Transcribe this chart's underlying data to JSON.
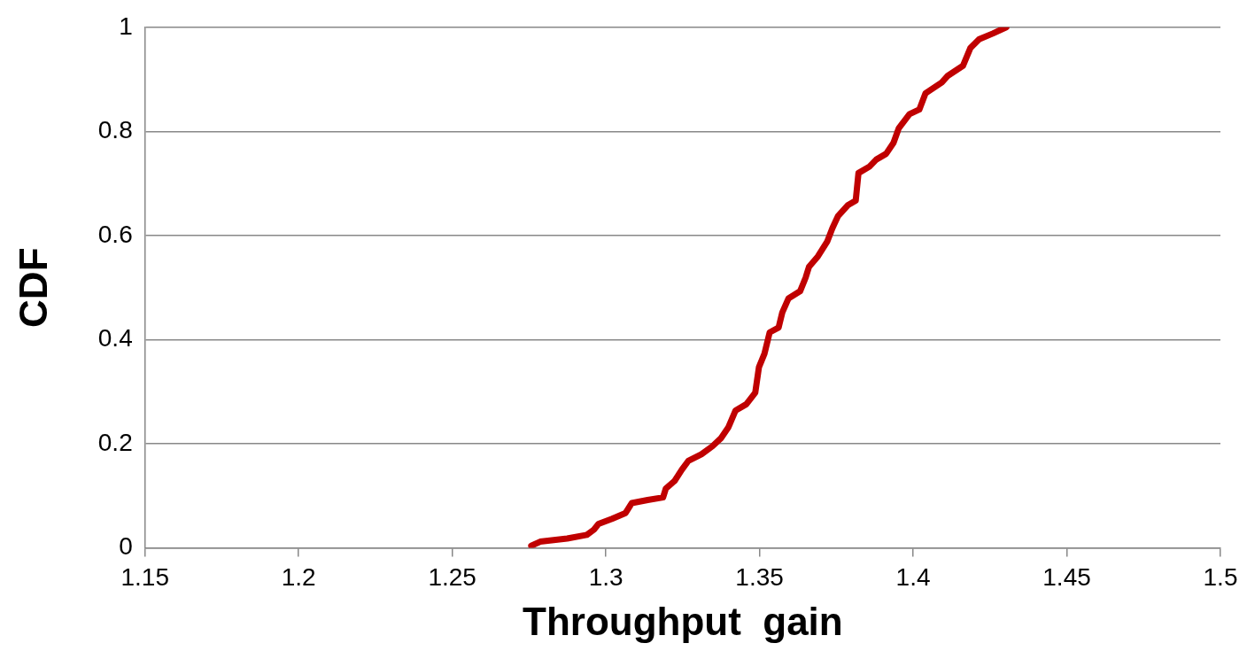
{
  "chart_data": {
    "type": "line",
    "xlabel": "Throughput  gain",
    "ylabel": "CDF",
    "xlim": [
      1.15,
      1.5
    ],
    "xticks": [
      1.15,
      1.2,
      1.25,
      1.3,
      1.35,
      1.4,
      1.45,
      1.5
    ],
    "ylim": [
      0,
      1
    ],
    "yticks": [
      0,
      0.2,
      0.4,
      0.6,
      0.8,
      1
    ],
    "grid": "y",
    "legend": false,
    "marker": "none",
    "line_style": "solid",
    "series": [
      {
        "color": "#c00000",
        "x": [
          1.2757,
          1.2786,
          1.2874,
          1.2938,
          1.2961,
          1.2976,
          1.302,
          1.3064,
          1.3084,
          1.3136,
          1.3186,
          1.3195,
          1.3224,
          1.3247,
          1.3268,
          1.3311,
          1.3346,
          1.3375,
          1.3399,
          1.3422,
          1.3457,
          1.3486,
          1.3498,
          1.3516,
          1.3533,
          1.3562,
          1.3574,
          1.3594,
          1.3632,
          1.365,
          1.3661,
          1.369,
          1.372,
          1.3737,
          1.3755,
          1.3787,
          1.3813,
          1.3822,
          1.3857,
          1.388,
          1.3912,
          1.3936,
          1.3953,
          1.3988,
          1.402,
          1.404,
          1.4093,
          1.4113,
          1.4162,
          1.4186,
          1.4215,
          1.4259,
          1.4303
        ],
        "values": [
          0.004,
          0.012,
          0.018,
          0.025,
          0.035,
          0.046,
          0.056,
          0.067,
          0.086,
          0.092,
          0.097,
          0.114,
          0.129,
          0.15,
          0.167,
          0.18,
          0.195,
          0.211,
          0.232,
          0.264,
          0.276,
          0.298,
          0.347,
          0.373,
          0.414,
          0.423,
          0.452,
          0.479,
          0.493,
          0.519,
          0.54,
          0.56,
          0.588,
          0.614,
          0.637,
          0.658,
          0.667,
          0.72,
          0.732,
          0.746,
          0.757,
          0.778,
          0.806,
          0.833,
          0.842,
          0.873,
          0.894,
          0.907,
          0.926,
          0.96,
          0.977,
          0.988,
          1.0
        ]
      }
    ]
  }
}
